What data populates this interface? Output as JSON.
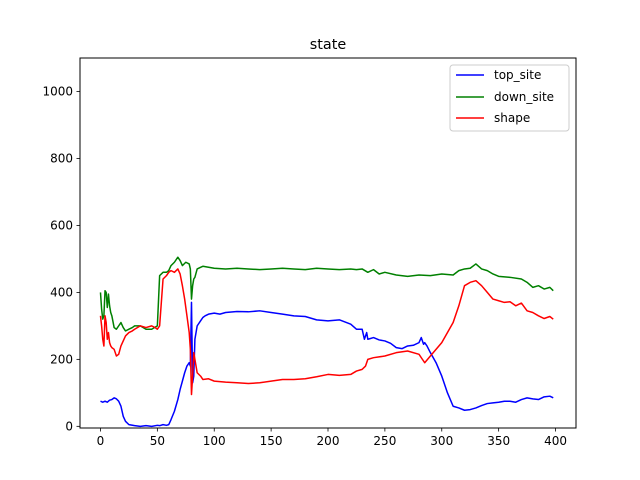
{
  "chart_data": {
    "type": "line",
    "title": "state",
    "xlabel": "",
    "ylabel": "",
    "xlim": [
      -18,
      418
    ],
    "ylim": [
      -5,
      1100
    ],
    "xticks": [
      0,
      50,
      100,
      150,
      200,
      250,
      300,
      350,
      400
    ],
    "yticks": [
      0,
      200,
      400,
      600,
      800,
      1000
    ],
    "grid": false,
    "legend_position": "top-right",
    "series": [
      {
        "name": "top_site",
        "color": "#0000ff",
        "x": [
          0,
          2,
          4,
          6,
          8,
          10,
          12,
          14,
          16,
          18,
          20,
          22,
          25,
          30,
          35,
          40,
          45,
          50,
          52,
          55,
          58,
          60,
          62,
          65,
          68,
          70,
          72,
          74,
          76,
          77,
          78,
          79,
          80,
          81,
          82,
          83,
          85,
          88,
          90,
          92,
          95,
          100,
          105,
          110,
          120,
          130,
          140,
          150,
          160,
          170,
          180,
          190,
          200,
          210,
          220,
          225,
          230,
          232,
          234,
          235,
          237,
          240,
          245,
          250,
          255,
          260,
          265,
          270,
          275,
          280,
          282,
          284,
          285,
          287,
          290,
          295,
          300,
          305,
          310,
          315,
          320,
          325,
          330,
          335,
          340,
          345,
          350,
          355,
          360,
          365,
          370,
          375,
          380,
          385,
          390,
          395,
          398
        ],
        "y": [
          75,
          72,
          75,
          72,
          78,
          80,
          85,
          82,
          75,
          60,
          30,
          15,
          5,
          2,
          0,
          2,
          0,
          3,
          2,
          5,
          3,
          5,
          20,
          45,
          80,
          110,
          135,
          160,
          180,
          185,
          190,
          180,
          370,
          130,
          150,
          260,
          300,
          315,
          325,
          330,
          335,
          338,
          335,
          340,
          343,
          342,
          345,
          340,
          335,
          330,
          328,
          318,
          315,
          318,
          305,
          290,
          290,
          260,
          280,
          260,
          262,
          265,
          258,
          255,
          248,
          235,
          232,
          240,
          242,
          250,
          265,
          245,
          250,
          240,
          220,
          190,
          150,
          100,
          60,
          55,
          48,
          50,
          55,
          62,
          68,
          70,
          72,
          75,
          75,
          72,
          80,
          85,
          82,
          80,
          88,
          90,
          85
        ]
      },
      {
        "name": "down_site",
        "color": "#008000",
        "x": [
          0,
          1,
          2,
          3,
          4,
          5,
          6,
          7,
          8,
          9,
          10,
          12,
          14,
          16,
          18,
          20,
          22,
          25,
          28,
          30,
          35,
          40,
          45,
          50,
          52,
          55,
          58,
          60,
          62,
          65,
          68,
          70,
          72,
          75,
          78,
          79,
          80,
          81,
          82,
          83,
          85,
          88,
          90,
          95,
          100,
          110,
          120,
          130,
          140,
          150,
          160,
          170,
          180,
          190,
          200,
          210,
          220,
          225,
          230,
          235,
          240,
          245,
          250,
          260,
          270,
          280,
          290,
          300,
          310,
          315,
          320,
          325,
          330,
          335,
          340,
          345,
          350,
          360,
          370,
          375,
          380,
          385,
          390,
          395,
          398
        ],
        "y": [
          400,
          350,
          320,
          330,
          405,
          400,
          355,
          395,
          360,
          340,
          330,
          295,
          290,
          300,
          310,
          295,
          285,
          290,
          295,
          300,
          300,
          290,
          290,
          300,
          450,
          460,
          460,
          465,
          480,
          490,
          505,
          495,
          480,
          490,
          485,
          470,
          380,
          420,
          440,
          445,
          470,
          475,
          478,
          475,
          472,
          470,
          472,
          470,
          468,
          470,
          472,
          470,
          468,
          472,
          470,
          468,
          470,
          468,
          470,
          460,
          468,
          455,
          460,
          452,
          448,
          452,
          450,
          455,
          452,
          465,
          470,
          472,
          485,
          470,
          465,
          455,
          448,
          445,
          440,
          430,
          415,
          420,
          410,
          415,
          405
        ]
      },
      {
        "name": "shape",
        "color": "#ff0000",
        "x": [
          0,
          1,
          2,
          3,
          4,
          5,
          6,
          7,
          8,
          9,
          10,
          12,
          14,
          16,
          18,
          20,
          22,
          25,
          28,
          30,
          35,
          40,
          45,
          48,
          50,
          52,
          55,
          58,
          60,
          62,
          65,
          68,
          70,
          72,
          74,
          76,
          78,
          79,
          80,
          81,
          82,
          83,
          85,
          88,
          90,
          95,
          100,
          110,
          120,
          130,
          140,
          150,
          160,
          170,
          180,
          190,
          200,
          210,
          220,
          225,
          230,
          233,
          235,
          240,
          250,
          260,
          270,
          280,
          283,
          285,
          290,
          300,
          310,
          315,
          320,
          325,
          330,
          335,
          340,
          345,
          350,
          355,
          360,
          365,
          370,
          375,
          380,
          385,
          390,
          395,
          398
        ],
        "y": [
          330,
          300,
          260,
          240,
          330,
          310,
          260,
          280,
          250,
          240,
          235,
          230,
          210,
          215,
          240,
          255,
          270,
          280,
          285,
          290,
          300,
          295,
          300,
          295,
          290,
          300,
          440,
          450,
          460,
          465,
          460,
          470,
          455,
          420,
          380,
          330,
          280,
          230,
          95,
          150,
          220,
          200,
          160,
          150,
          140,
          142,
          135,
          132,
          130,
          128,
          130,
          135,
          140,
          140,
          142,
          148,
          155,
          152,
          155,
          165,
          170,
          180,
          200,
          205,
          210,
          220,
          225,
          215,
          200,
          190,
          210,
          250,
          310,
          360,
          420,
          430,
          435,
          420,
          400,
          380,
          375,
          370,
          372,
          360,
          368,
          345,
          340,
          330,
          322,
          328,
          320
        ]
      }
    ]
  }
}
